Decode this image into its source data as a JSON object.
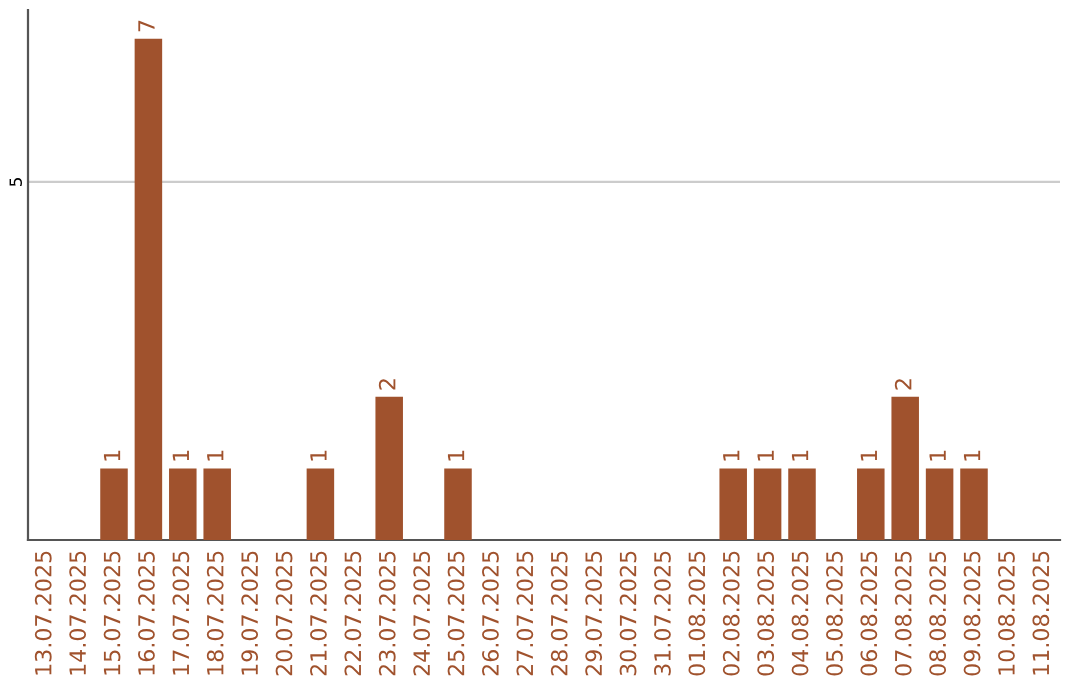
{
  "chart_data": {
    "type": "bar",
    "categories": [
      "13.07.2025",
      "14.07.2025",
      "15.07.2025",
      "16.07.2025",
      "17.07.2025",
      "18.07.2025",
      "19.07.2025",
      "20.07.2025",
      "21.07.2025",
      "22.07.2025",
      "23.07.2025",
      "24.07.2025",
      "25.07.2025",
      "26.07.2025",
      "27.07.2025",
      "28.07.2025",
      "29.07.2025",
      "30.07.2025",
      "31.07.2025",
      "01.08.2025",
      "02.08.2025",
      "03.08.2025",
      "04.08.2025",
      "05.08.2025",
      "06.08.2025",
      "07.08.2025",
      "08.08.2025",
      "09.08.2025",
      "10.08.2025",
      "11.08.2025"
    ],
    "values": [
      0,
      0,
      1,
      7,
      1,
      1,
      0,
      0,
      1,
      0,
      2,
      0,
      1,
      0,
      0,
      0,
      0,
      0,
      0,
      0,
      1,
      1,
      1,
      0,
      1,
      2,
      1,
      1,
      0,
      0
    ],
    "value_labels": [
      null,
      null,
      "1",
      "7",
      "1",
      "1",
      null,
      null,
      "1",
      null,
      "2",
      null,
      "1",
      null,
      null,
      null,
      null,
      null,
      null,
      null,
      "1",
      "1",
      "1",
      null,
      "1",
      "2",
      "1",
      "1",
      null,
      null
    ],
    "color": "#a0522d",
    "ylim": [
      0,
      7.4
    ],
    "yticks": [
      5
    ],
    "grid": "y",
    "legend": false
  }
}
